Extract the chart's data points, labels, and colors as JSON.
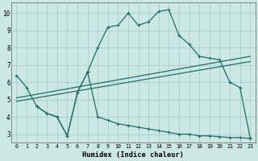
{
  "xlabel": "Humidex (Indice chaleur)",
  "background_color": "#cce8e4",
  "grid_color": "#aacfcb",
  "line_color": "#1e6e65",
  "xlim": [
    -0.5,
    23.5
  ],
  "ylim": [
    2.5,
    10.6
  ],
  "xticks": [
    0,
    1,
    2,
    3,
    4,
    5,
    6,
    7,
    8,
    9,
    10,
    11,
    12,
    13,
    14,
    15,
    16,
    17,
    18,
    19,
    20,
    21,
    22,
    23
  ],
  "yticks": [
    3,
    4,
    5,
    6,
    7,
    8,
    9,
    10
  ],
  "line1_x": [
    0,
    1,
    2,
    3,
    4,
    5,
    6,
    7,
    8,
    9,
    10,
    11,
    12,
    13,
    14,
    15,
    16,
    17,
    18,
    19,
    20,
    21,
    22,
    23
  ],
  "line1_y": [
    6.4,
    5.7,
    4.6,
    4.2,
    4.0,
    2.9,
    5.4,
    6.6,
    8.0,
    9.2,
    9.3,
    10.0,
    9.3,
    9.5,
    10.1,
    10.2,
    8.7,
    8.2,
    7.5,
    7.4,
    7.3,
    6.0,
    5.7,
    2.8
  ],
  "line2_x": [
    0,
    23
  ],
  "line2_y": [
    5.1,
    7.5
  ],
  "line3_x": [
    0,
    23
  ],
  "line3_y": [
    4.9,
    7.2
  ],
  "line4_x": [
    2,
    3,
    4,
    5,
    6,
    7,
    8,
    9,
    10,
    11,
    12,
    13,
    14,
    15,
    16,
    17,
    18,
    19,
    20,
    21,
    22,
    23
  ],
  "line4_y": [
    4.6,
    4.2,
    4.0,
    2.9,
    5.4,
    6.6,
    4.0,
    3.8,
    3.6,
    3.5,
    3.4,
    3.3,
    3.2,
    3.1,
    3.0,
    3.0,
    2.9,
    2.9,
    2.85,
    2.8,
    2.8,
    2.75
  ]
}
